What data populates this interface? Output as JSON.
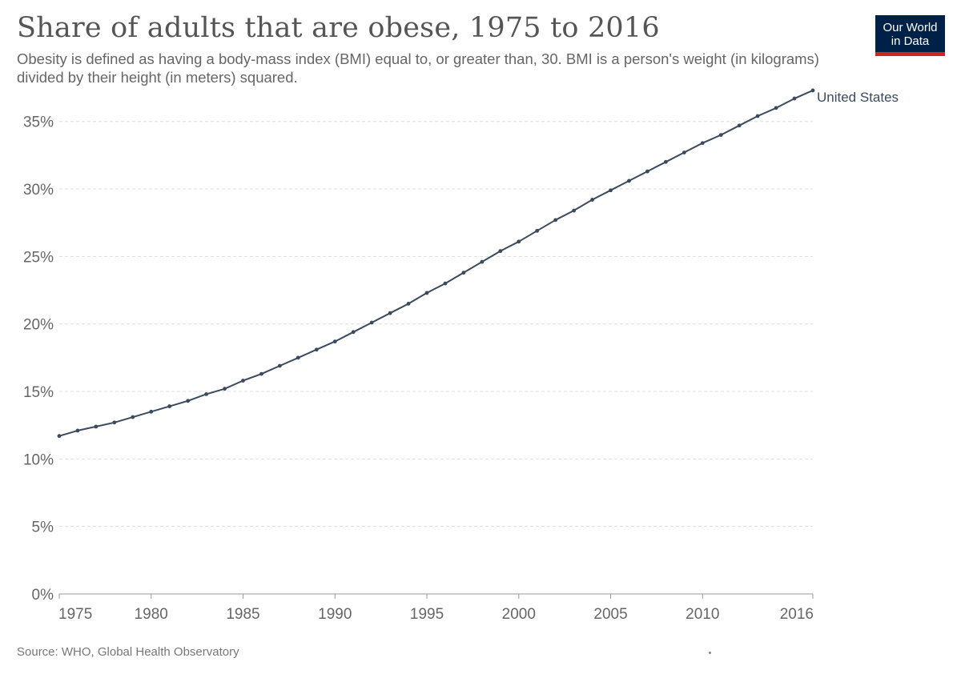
{
  "header": {
    "title": "Share of adults that are obese, 1975 to 2016",
    "subtitle": "Obesity is defined as having a body-mass index (BMI) equal to, or greater than, 30. BMI is a person's weight (in kilograms) divided by their height (in meters) squared."
  },
  "logo": {
    "line1": "Our World",
    "line2": "in Data"
  },
  "footer": {
    "source": "Source: WHO, Global Health Observatory"
  },
  "colors": {
    "series": "#3c4a5e",
    "grid": "#dddddd",
    "axis": "#666666",
    "logo_bg": "#002147",
    "logo_accent": "#ce261e"
  },
  "chart_data": {
    "type": "line",
    "title": "Share of adults that are obese, 1975 to 2016",
    "xlabel": "",
    "ylabel": "",
    "xlim": [
      1975,
      2016
    ],
    "ylim": [
      0,
      37
    ],
    "x_ticks": [
      1975,
      1980,
      1985,
      1990,
      1995,
      2000,
      2005,
      2010,
      2016
    ],
    "y_ticks": [
      0,
      5,
      10,
      15,
      20,
      25,
      30,
      35
    ],
    "y_tick_labels": [
      "0%",
      "5%",
      "10%",
      "15%",
      "20%",
      "25%",
      "30%",
      "35%"
    ],
    "grid": true,
    "series": [
      {
        "name": "United States",
        "x": [
          1975,
          1976,
          1977,
          1978,
          1979,
          1980,
          1981,
          1982,
          1983,
          1984,
          1985,
          1986,
          1987,
          1988,
          1989,
          1990,
          1991,
          1992,
          1993,
          1994,
          1995,
          1996,
          1997,
          1998,
          1999,
          2000,
          2001,
          2002,
          2003,
          2004,
          2005,
          2006,
          2007,
          2008,
          2009,
          2010,
          2011,
          2012,
          2013,
          2014,
          2015,
          2016
        ],
        "values": [
          11.7,
          12.1,
          12.4,
          12.7,
          13.1,
          13.5,
          13.9,
          14.3,
          14.8,
          15.2,
          15.8,
          16.3,
          16.9,
          17.5,
          18.1,
          18.7,
          19.4,
          20.1,
          20.8,
          21.5,
          22.3,
          23.0,
          23.8,
          24.6,
          25.4,
          26.1,
          26.9,
          27.7,
          28.4,
          29.2,
          29.9,
          30.6,
          31.3,
          32.0,
          32.7,
          33.4,
          34.0,
          34.7,
          35.4,
          36.0,
          36.7,
          37.3
        ]
      }
    ]
  }
}
